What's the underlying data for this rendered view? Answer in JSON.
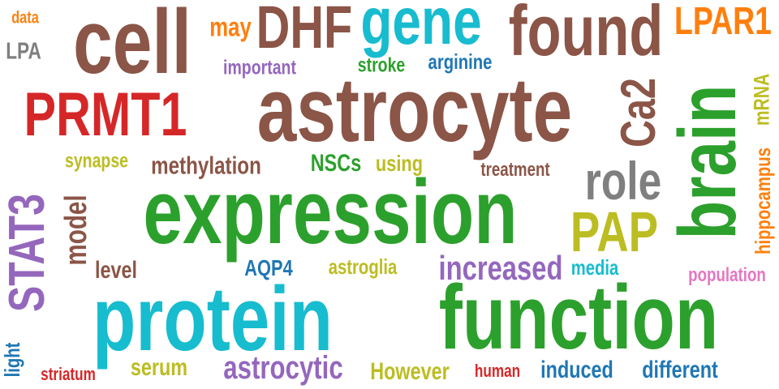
{
  "palette": {
    "brown": "#8B5547",
    "cyan": "#17BCCF",
    "green": "#2CA02C",
    "red": "#D62728",
    "orange": "#FF7F0E",
    "purple": "#9467BD",
    "olive": "#BCBD22",
    "gray": "#7F7F7F",
    "blue": "#1F77B4",
    "pink": "#E377C2"
  },
  "words": [
    {
      "text": "data",
      "color": "orange"
    },
    {
      "text": "LPA",
      "color": "gray"
    },
    {
      "text": "cell",
      "color": "brown"
    },
    {
      "text": "may",
      "color": "orange"
    },
    {
      "text": "DHF",
      "color": "brown"
    },
    {
      "text": "gene",
      "color": "cyan"
    },
    {
      "text": "found",
      "color": "brown"
    },
    {
      "text": "LPAR1",
      "color": "orange"
    },
    {
      "text": "important",
      "color": "purple"
    },
    {
      "text": "stroke",
      "color": "green"
    },
    {
      "text": "arginine",
      "color": "blue"
    },
    {
      "text": "PRMT1",
      "color": "red"
    },
    {
      "text": "astrocyte",
      "color": "brown"
    },
    {
      "text": "Ca2",
      "color": "brown"
    },
    {
      "text": "brain",
      "color": "green"
    },
    {
      "text": "mRNA",
      "color": "olive"
    },
    {
      "text": "hippocampus",
      "color": "orange"
    },
    {
      "text": "synapse",
      "color": "olive"
    },
    {
      "text": "methylation",
      "color": "brown"
    },
    {
      "text": "NSCs",
      "color": "green"
    },
    {
      "text": "using",
      "color": "olive"
    },
    {
      "text": "treatment",
      "color": "brown"
    },
    {
      "text": "role",
      "color": "gray"
    },
    {
      "text": "STAT3",
      "color": "purple"
    },
    {
      "text": "model",
      "color": "brown"
    },
    {
      "text": "expression",
      "color": "green"
    },
    {
      "text": "PAP",
      "color": "olive"
    },
    {
      "text": "level",
      "color": "brown"
    },
    {
      "text": "AQP4",
      "color": "blue"
    },
    {
      "text": "astroglia",
      "color": "olive"
    },
    {
      "text": "increased",
      "color": "purple"
    },
    {
      "text": "media",
      "color": "cyan"
    },
    {
      "text": "population",
      "color": "pink"
    },
    {
      "text": "protein",
      "color": "cyan"
    },
    {
      "text": "function",
      "color": "green"
    },
    {
      "text": "light",
      "color": "blue"
    },
    {
      "text": "striatum",
      "color": "red"
    },
    {
      "text": "serum",
      "color": "olive"
    },
    {
      "text": "astrocytic",
      "color": "purple"
    },
    {
      "text": "However",
      "color": "olive"
    },
    {
      "text": "human",
      "color": "red"
    },
    {
      "text": "induced",
      "color": "blue"
    },
    {
      "text": "different",
      "color": "blue"
    }
  ]
}
